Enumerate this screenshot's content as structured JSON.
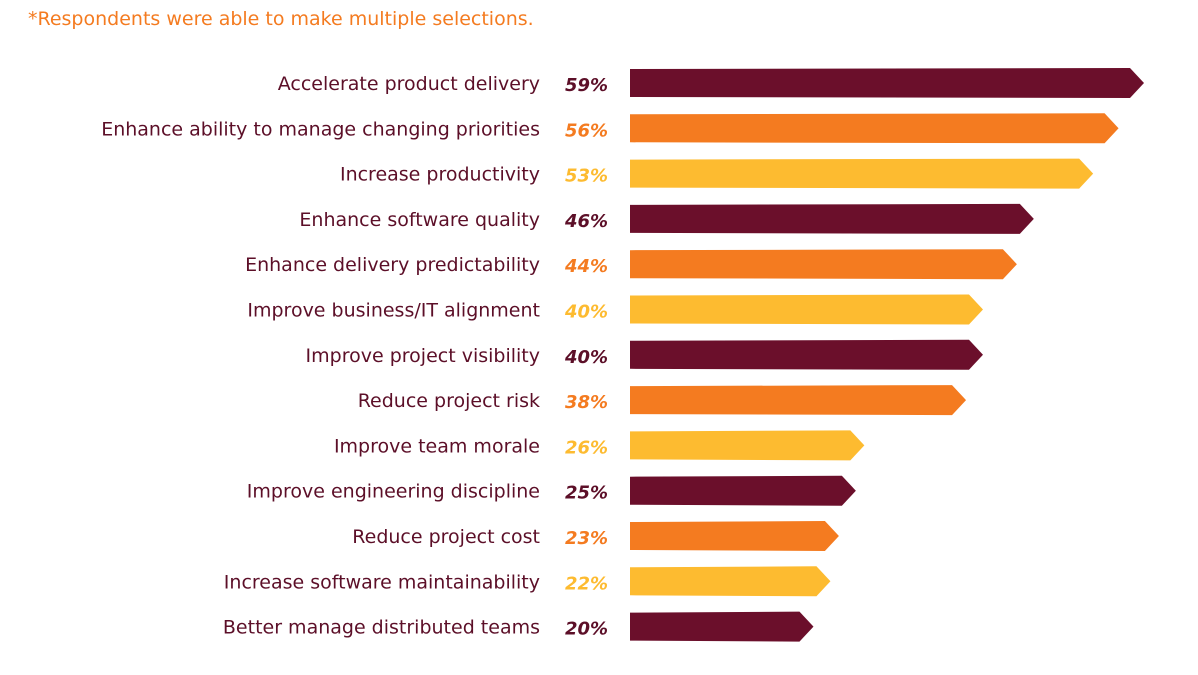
{
  "footnote": "*Respondents were able to make multiple selections.",
  "colors": {
    "maroon": "#6b0f2b",
    "orange": "#f47b20",
    "yellow": "#fdbb30",
    "label_text": "#5c0f28"
  },
  "chart_data": {
    "type": "bar",
    "orientation": "horizontal",
    "categories": [
      "Accelerate product delivery",
      "Enhance ability to manage changing priorities",
      "Increase productivity",
      "Enhance software quality",
      "Enhance delivery predictability",
      "Improve business/IT alignment",
      "Improve project visibility",
      "Reduce project risk",
      "Improve team morale",
      "Improve engineering discipline",
      "Reduce project cost",
      "Increase software maintainability",
      "Better manage distributed teams"
    ],
    "values": [
      59,
      56,
      53,
      46,
      44,
      40,
      40,
      38,
      26,
      25,
      23,
      22,
      20
    ],
    "value_labels": [
      "59%",
      "56%",
      "53%",
      "46%",
      "44%",
      "40%",
      "40%",
      "38%",
      "26%",
      "25%",
      "23%",
      "22%",
      "20%"
    ],
    "bar_colors": [
      "maroon",
      "orange",
      "yellow",
      "maroon",
      "orange",
      "yellow",
      "maroon",
      "orange",
      "yellow",
      "maroon",
      "orange",
      "yellow",
      "maroon"
    ],
    "title": "",
    "xlabel": "",
    "ylabel": "",
    "xlim": [
      0,
      59
    ],
    "grid": false,
    "legend": "none"
  }
}
